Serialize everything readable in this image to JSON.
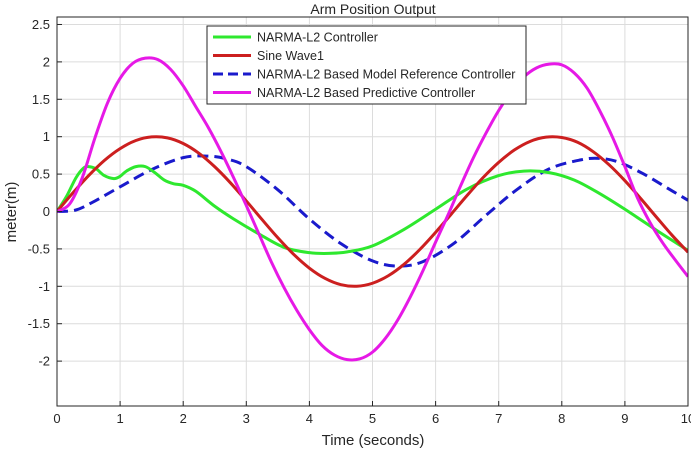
{
  "chart_data": {
    "type": "line",
    "title": "Arm Position Output",
    "xlabel": "Time (seconds)",
    "ylabel": "meter(m)",
    "xlim": [
      0,
      10
    ],
    "ylim": [
      -2.6,
      2.6
    ],
    "grid": true,
    "legend_position": "top-center",
    "x_ticks": [
      0,
      1,
      2,
      3,
      4,
      5,
      6,
      7,
      8,
      9,
      10
    ],
    "x_tick_labels": [
      "0",
      "1",
      "2",
      "3",
      "4",
      "5",
      "6",
      "7",
      "8",
      "9",
      "10"
    ],
    "y_ticks": [
      2.5,
      2,
      1.5,
      1,
      0.5,
      0,
      -0.5,
      -1,
      -1.5,
      -2
    ],
    "y_tick_labels": [
      "2.5",
      "2",
      "1.5",
      "1",
      "0.5",
      "0",
      "-0.5",
      "-1",
      "-1.5",
      "-2"
    ],
    "series": [
      {
        "name": "NARMA-L2 Controller",
        "color": "#2ee82e",
        "style": "solid",
        "x": [
          0,
          0.15,
          0.3,
          0.42,
          0.5,
          0.62,
          0.75,
          0.9,
          1.0,
          1.1,
          1.25,
          1.4,
          1.55,
          1.7,
          1.85,
          2.0,
          2.2,
          2.5,
          2.8,
          3.2,
          3.6,
          4.0,
          4.3,
          4.6,
          5.0,
          5.5,
          6.0,
          6.5,
          7.0,
          7.4,
          7.8,
          8.2,
          8.6,
          9.0,
          9.5,
          10.0
        ],
        "y": [
          0,
          0.2,
          0.45,
          0.58,
          0.6,
          0.57,
          0.48,
          0.44,
          0.47,
          0.54,
          0.6,
          0.6,
          0.52,
          0.42,
          0.37,
          0.35,
          0.27,
          0.07,
          -0.1,
          -0.3,
          -0.48,
          -0.55,
          -0.56,
          -0.54,
          -0.46,
          -0.24,
          0.03,
          0.3,
          0.48,
          0.54,
          0.52,
          0.42,
          0.24,
          0.03,
          -0.25,
          -0.52
        ]
      },
      {
        "name": "Sine Wave1",
        "color": "#cc1f1f",
        "style": "solid",
        "x": [
          0,
          0.25,
          0.5,
          0.75,
          1.0,
          1.25,
          1.5,
          1.75,
          2.0,
          2.25,
          2.5,
          2.75,
          3.0,
          3.25,
          3.5,
          3.75,
          4.0,
          4.25,
          4.5,
          4.75,
          5.0,
          5.25,
          5.5,
          5.75,
          6.0,
          6.25,
          6.5,
          6.75,
          7.0,
          7.25,
          7.5,
          7.75,
          8.0,
          8.25,
          8.5,
          8.75,
          9.0,
          9.25,
          9.5,
          9.75,
          10.0
        ],
        "y": [
          0,
          0.247,
          0.479,
          0.682,
          0.841,
          0.949,
          0.997,
          0.984,
          0.909,
          0.778,
          0.598,
          0.382,
          0.141,
          -0.108,
          -0.351,
          -0.572,
          -0.757,
          -0.895,
          -0.978,
          -0.999,
          -0.959,
          -0.859,
          -0.706,
          -0.508,
          -0.279,
          -0.033,
          0.215,
          0.451,
          0.657,
          0.823,
          0.938,
          0.994,
          0.989,
          0.925,
          0.798,
          0.624,
          0.412,
          0.174,
          -0.075,
          -0.32,
          -0.544
        ]
      },
      {
        "name": "NARMA-L2 Based Model Reference Controller",
        "color": "#1a1acc",
        "style": "dashed",
        "x": [
          0,
          0.3,
          0.6,
          1.0,
          1.5,
          2.0,
          2.4,
          2.7,
          3.0,
          3.5,
          4.0,
          4.5,
          5.0,
          5.4,
          5.8,
          6.3,
          6.8,
          7.3,
          7.8,
          8.3,
          8.6,
          8.9,
          9.3,
          9.7,
          10.0
        ],
        "y": [
          0,
          0.02,
          0.14,
          0.33,
          0.56,
          0.72,
          0.74,
          0.7,
          0.6,
          0.29,
          -0.1,
          -0.43,
          -0.66,
          -0.73,
          -0.67,
          -0.42,
          -0.05,
          0.3,
          0.57,
          0.69,
          0.71,
          0.66,
          0.5,
          0.3,
          0.15
        ]
      },
      {
        "name": "NARMA-L2 Based Predictive Controller",
        "color": "#e619e6",
        "style": "solid",
        "x": [
          0,
          0.2,
          0.4,
          0.6,
          0.8,
          1.0,
          1.2,
          1.4,
          1.6,
          1.8,
          2.0,
          2.2,
          2.4,
          2.6,
          2.8,
          3.0,
          3.2,
          3.4,
          3.6,
          3.8,
          4.0,
          4.2,
          4.4,
          4.6,
          4.8,
          5.0,
          5.2,
          5.4,
          5.6,
          5.8,
          6.0,
          6.2,
          6.4,
          6.6,
          6.8,
          7.0,
          7.2,
          7.4,
          7.6,
          7.8,
          8.0,
          8.2,
          8.4,
          8.6,
          8.8,
          9.0,
          9.2,
          9.4,
          9.6,
          9.8,
          10.0
        ],
        "y": [
          0,
          0.1,
          0.45,
          0.98,
          1.45,
          1.78,
          1.98,
          2.05,
          2.03,
          1.9,
          1.68,
          1.4,
          1.12,
          0.8,
          0.45,
          0.08,
          -0.3,
          -0.68,
          -1.02,
          -1.32,
          -1.58,
          -1.79,
          -1.92,
          -1.98,
          -1.97,
          -1.88,
          -1.7,
          -1.45,
          -1.14,
          -0.79,
          -0.41,
          -0.04,
          0.35,
          0.72,
          1.05,
          1.35,
          1.6,
          1.8,
          1.92,
          1.97,
          1.96,
          1.85,
          1.65,
          1.35,
          1.0,
          0.6,
          0.18,
          -0.15,
          -0.42,
          -0.65,
          -0.87
        ]
      }
    ]
  }
}
